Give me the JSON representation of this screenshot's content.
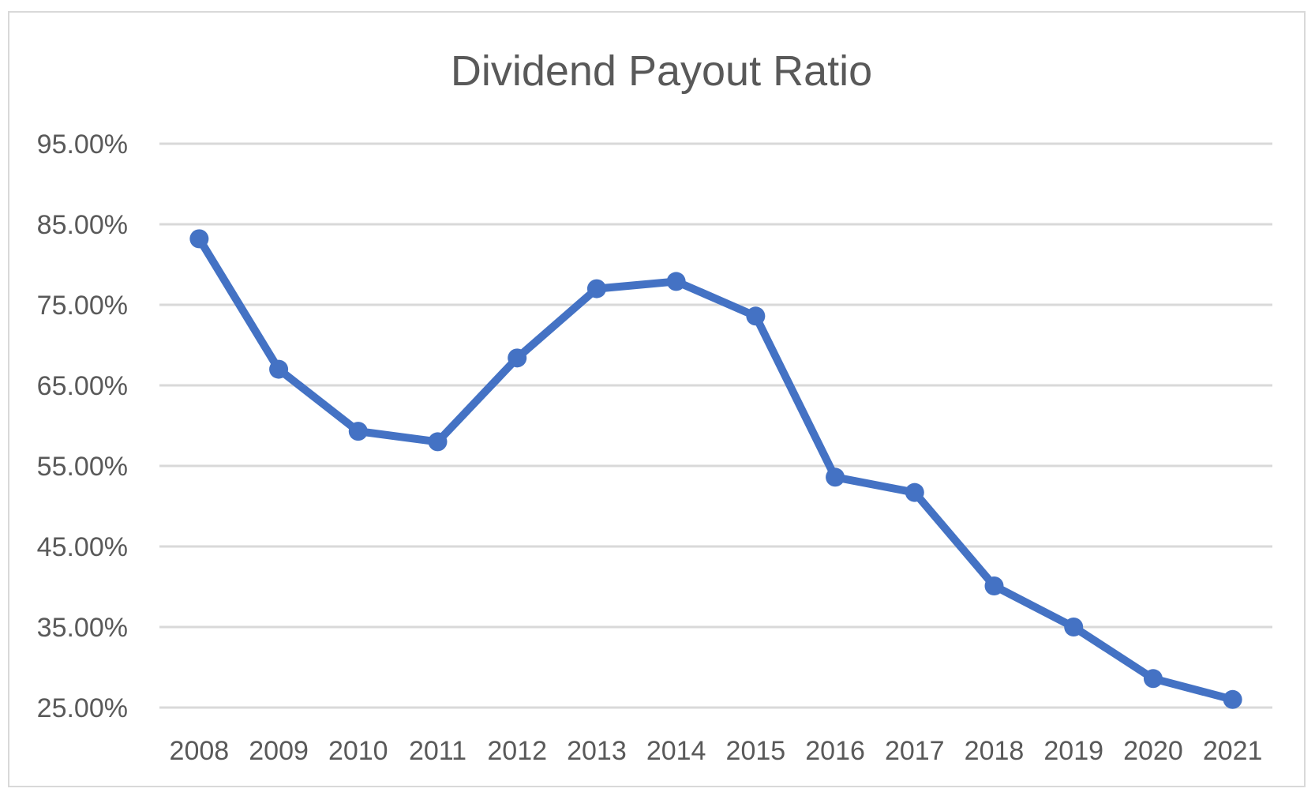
{
  "chart_data": {
    "type": "line",
    "title": "Dividend Payout Ratio",
    "xlabel": "",
    "ylabel": "",
    "categories": [
      "2008",
      "2009",
      "2010",
      "2011",
      "2012",
      "2013",
      "2014",
      "2015",
      "2016",
      "2017",
      "2018",
      "2019",
      "2020",
      "2021"
    ],
    "series": [
      {
        "values": [
          83.2,
          67.0,
          59.3,
          58.0,
          68.4,
          77.0,
          77.9,
          73.6,
          53.6,
          51.7,
          40.1,
          35.0,
          28.6,
          26.0
        ]
      }
    ],
    "ylim": [
      25,
      95
    ],
    "yticks": [
      25,
      35,
      45,
      55,
      65,
      75,
      85,
      95
    ],
    "ytick_labels": [
      "25.00%",
      "35.00%",
      "45.00%",
      "55.00%",
      "65.00%",
      "75.00%",
      "85.00%",
      "95.00%"
    ],
    "grid": true,
    "legend": "none",
    "colors": {
      "line": "#4472C4",
      "grid": "#d9d9d9",
      "text": "#595959",
      "border": "#d9d9d9"
    }
  }
}
